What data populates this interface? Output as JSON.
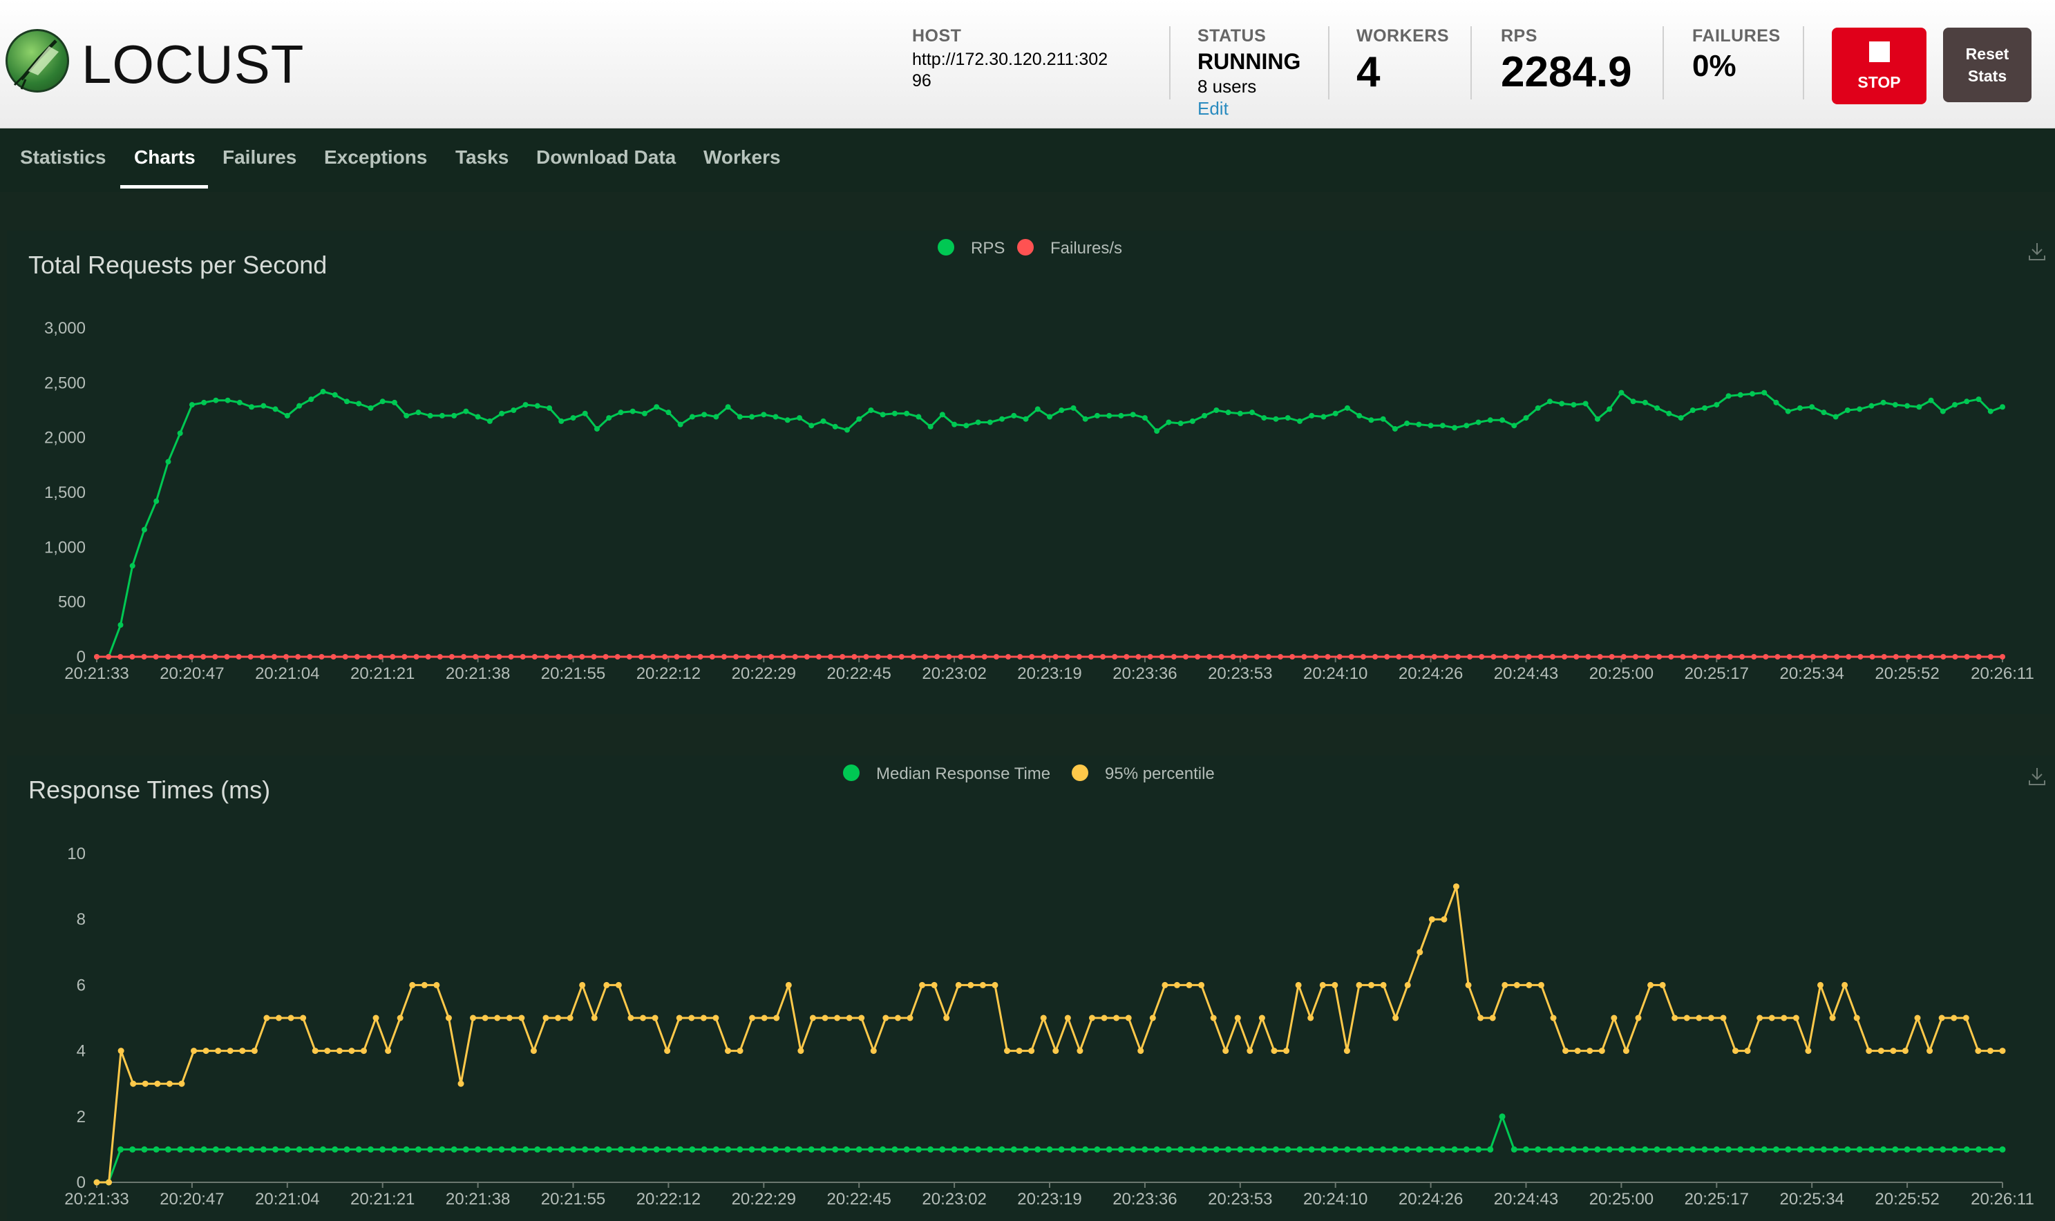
{
  "header": {
    "logo_text": "LOCUST",
    "host_label": "HOST",
    "host_line1": "http://172.30.120.211:302",
    "host_line2": "96",
    "status_label": "STATUS",
    "status_value": "RUNNING",
    "users": "8 users",
    "edit": "Edit",
    "workers_label": "WORKERS",
    "workers_value": "4",
    "rps_label": "RPS",
    "rps_value": "2284.9",
    "failures_label": "FAILURES",
    "failures_value": "0%",
    "stop_label": "STOP",
    "reset_line1": "Reset",
    "reset_line2": "Stats",
    "colors": {
      "stop": "#e0001a",
      "reset": "#4d4040",
      "edit_link": "#2a8bbf"
    }
  },
  "nav": {
    "tabs": [
      "Statistics",
      "Charts",
      "Failures",
      "Exceptions",
      "Tasks",
      "Download Data",
      "Workers"
    ],
    "active": "Charts"
  },
  "chart_data": [
    {
      "type": "line",
      "title": "Total Requests per Second",
      "x_tick_labels": [
        "20:21:33",
        "20:20:47",
        "20:21:04",
        "20:21:21",
        "20:21:38",
        "20:21:55",
        "20:22:12",
        "20:22:29",
        "20:22:45",
        "20:23:02",
        "20:23:19",
        "20:23:36",
        "20:23:53",
        "20:24:10",
        "20:24:26",
        "20:24:43",
        "20:25:00",
        "20:25:17",
        "20:25:34",
        "20:25:52",
        "20:26:11"
      ],
      "ylim": [
        0,
        3000
      ],
      "y_ticks": [
        "3,000",
        "2,500",
        "2,000",
        "1,500",
        "1,000",
        "500",
        "0"
      ],
      "legend": "top-center",
      "grid": false,
      "series": [
        {
          "name": "RPS",
          "color": "#00c853",
          "values": [
            0,
            0,
            290,
            830,
            1160,
            1420,
            1780,
            2040,
            2300,
            2320,
            2340,
            2340,
            2320,
            2280,
            2290,
            2260,
            2200,
            2290,
            2350,
            2420,
            2390,
            2330,
            2310,
            2270,
            2330,
            2320,
            2200,
            2230,
            2200,
            2200,
            2200,
            2240,
            2190,
            2150,
            2220,
            2250,
            2300,
            2290,
            2270,
            2150,
            2180,
            2220,
            2080,
            2180,
            2230,
            2240,
            2220,
            2280,
            2230,
            2120,
            2190,
            2210,
            2190,
            2280,
            2190,
            2190,
            2210,
            2190,
            2160,
            2180,
            2110,
            2150,
            2100,
            2070,
            2170,
            2250,
            2210,
            2220,
            2220,
            2190,
            2100,
            2210,
            2120,
            2110,
            2140,
            2140,
            2170,
            2200,
            2170,
            2260,
            2190,
            2250,
            2270,
            2170,
            2200,
            2200,
            2200,
            2210,
            2180,
            2060,
            2140,
            2130,
            2150,
            2200,
            2250,
            2230,
            2220,
            2230,
            2180,
            2170,
            2180,
            2150,
            2200,
            2190,
            2220,
            2270,
            2200,
            2160,
            2170,
            2080,
            2130,
            2120,
            2110,
            2110,
            2090,
            2110,
            2140,
            2160,
            2160,
            2110,
            2180,
            2270,
            2330,
            2310,
            2300,
            2310,
            2170,
            2260,
            2410,
            2330,
            2320,
            2270,
            2220,
            2180,
            2250,
            2270,
            2300,
            2380,
            2390,
            2400,
            2410,
            2320,
            2240,
            2270,
            2280,
            2230,
            2190,
            2250,
            2260,
            2290,
            2320,
            2300,
            2290,
            2280,
            2340,
            2240,
            2300,
            2330,
            2350,
            2240,
            2280
          ]
        },
        {
          "name": "Failures/s",
          "color": "#ff5252",
          "values": [
            0,
            0,
            0,
            0,
            0,
            0,
            0,
            0,
            0,
            0,
            0,
            0,
            0,
            0,
            0,
            0,
            0,
            0,
            0,
            0,
            0,
            0,
            0,
            0,
            0,
            0,
            0,
            0,
            0,
            0,
            0,
            0,
            0,
            0,
            0,
            0,
            0,
            0,
            0,
            0,
            0,
            0,
            0,
            0,
            0,
            0,
            0,
            0,
            0,
            0,
            0,
            0,
            0,
            0,
            0,
            0,
            0,
            0,
            0,
            0,
            0,
            0,
            0,
            0,
            0,
            0,
            0,
            0,
            0,
            0,
            0,
            0,
            0,
            0,
            0,
            0,
            0,
            0,
            0,
            0,
            0,
            0,
            0,
            0,
            0,
            0,
            0,
            0,
            0,
            0,
            0,
            0,
            0,
            0,
            0,
            0,
            0,
            0,
            0,
            0,
            0,
            0,
            0,
            0,
            0,
            0,
            0,
            0,
            0,
            0,
            0,
            0,
            0,
            0,
            0,
            0,
            0,
            0,
            0,
            0,
            0,
            0,
            0,
            0,
            0,
            0,
            0,
            0,
            0,
            0,
            0,
            0,
            0,
            0,
            0,
            0,
            0,
            0,
            0,
            0,
            0,
            0,
            0,
            0,
            0,
            0,
            0,
            0,
            0,
            0,
            0,
            0,
            0,
            0,
            0,
            0,
            0,
            0,
            0,
            0,
            0,
            0
          ]
        }
      ]
    },
    {
      "type": "line",
      "title": "Response Times (ms)",
      "x_tick_labels": [
        "20:21:33",
        "20:20:47",
        "20:21:04",
        "20:21:21",
        "20:21:38",
        "20:21:55",
        "20:22:12",
        "20:22:29",
        "20:22:45",
        "20:23:02",
        "20:23:19",
        "20:23:36",
        "20:23:53",
        "20:24:10",
        "20:24:26",
        "20:24:43",
        "20:25:00",
        "20:25:17",
        "20:25:34",
        "20:25:52",
        "20:26:11"
      ],
      "ylim": [
        0,
        10
      ],
      "y_ticks": [
        "10",
        "8",
        "6",
        "4",
        "2",
        "0"
      ],
      "legend": "top-center",
      "grid": false,
      "series": [
        {
          "name": "Median Response Time",
          "color": "#00c853",
          "values": [
            0,
            0,
            1,
            1,
            1,
            1,
            1,
            1,
            1,
            1,
            1,
            1,
            1,
            1,
            1,
            1,
            1,
            1,
            1,
            1,
            1,
            1,
            1,
            1,
            1,
            1,
            1,
            1,
            1,
            1,
            1,
            1,
            1,
            1,
            1,
            1,
            1,
            1,
            1,
            1,
            1,
            1,
            1,
            1,
            1,
            1,
            1,
            1,
            1,
            1,
            1,
            1,
            1,
            1,
            1,
            1,
            1,
            1,
            1,
            1,
            1,
            1,
            1,
            1,
            1,
            1,
            1,
            1,
            1,
            1,
            1,
            1,
            1,
            1,
            1,
            1,
            1,
            1,
            1,
            1,
            1,
            1,
            1,
            1,
            1,
            1,
            1,
            1,
            1,
            1,
            1,
            1,
            1,
            1,
            1,
            1,
            1,
            1,
            1,
            1,
            1,
            1,
            1,
            1,
            1,
            1,
            1,
            1,
            1,
            1,
            1,
            1,
            1,
            1,
            1,
            1,
            1,
            1,
            2,
            1,
            1,
            1,
            1,
            1,
            1,
            1,
            1,
            1,
            1,
            1,
            1,
            1,
            1,
            1,
            1,
            1,
            1,
            1,
            1,
            1,
            1,
            1,
            1,
            1,
            1,
            1,
            1,
            1,
            1,
            1,
            1,
            1,
            1,
            1,
            1,
            1,
            1,
            1,
            1,
            1,
            1
          ]
        },
        {
          "name": "95% percentile",
          "color": "#ffc94a",
          "values": [
            0,
            0,
            4,
            3,
            3,
            3,
            3,
            3,
            4,
            4,
            4,
            4,
            4,
            4,
            5,
            5,
            5,
            5,
            4,
            4,
            4,
            4,
            4,
            5,
            4,
            5,
            6,
            6,
            6,
            5,
            3,
            5,
            5,
            5,
            5,
            5,
            4,
            5,
            5,
            5,
            6,
            5,
            6,
            6,
            5,
            5,
            5,
            4,
            5,
            5,
            5,
            5,
            4,
            4,
            5,
            5,
            5,
            6,
            4,
            5,
            5,
            5,
            5,
            5,
            4,
            5,
            5,
            5,
            6,
            6,
            5,
            6,
            6,
            6,
            6,
            4,
            4,
            4,
            5,
            4,
            5,
            4,
            5,
            5,
            5,
            5,
            4,
            5,
            6,
            6,
            6,
            6,
            5,
            4,
            5,
            4,
            5,
            4,
            4,
            6,
            5,
            6,
            6,
            4,
            6,
            6,
            6,
            5,
            6,
            7,
            8,
            8,
            9,
            6,
            5,
            5,
            6,
            6,
            6,
            6,
            5,
            4,
            4,
            4,
            4,
            5,
            4,
            5,
            6,
            6,
            5,
            5,
            5,
            5,
            5,
            4,
            4,
            5,
            5,
            5,
            5,
            4,
            6,
            5,
            6,
            5,
            4,
            4,
            4,
            4,
            5,
            4,
            5,
            5,
            5,
            4,
            4,
            4
          ]
        }
      ]
    }
  ]
}
